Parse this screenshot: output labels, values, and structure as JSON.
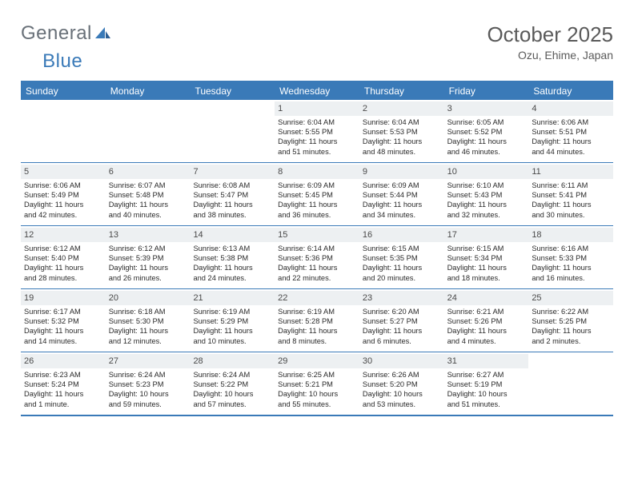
{
  "brand": {
    "part1": "General",
    "part2": "Blue"
  },
  "title": "October 2025",
  "location": "Ozu, Ehime, Japan",
  "colors": {
    "accent": "#3a7ab8",
    "dow_bg": "#3a7ab8",
    "dow_text": "#ffffff",
    "daynum_bg": "#edf0f2",
    "text": "#2a2a2a",
    "title_text": "#5a5a5a"
  },
  "dow": [
    "Sunday",
    "Monday",
    "Tuesday",
    "Wednesday",
    "Thursday",
    "Friday",
    "Saturday"
  ],
  "weeks": [
    [
      {
        "empty": true
      },
      {
        "empty": true
      },
      {
        "empty": true
      },
      {
        "n": "1",
        "sr": "Sunrise: 6:04 AM",
        "ss": "Sunset: 5:55 PM",
        "d1": "Daylight: 11 hours",
        "d2": "and 51 minutes."
      },
      {
        "n": "2",
        "sr": "Sunrise: 6:04 AM",
        "ss": "Sunset: 5:53 PM",
        "d1": "Daylight: 11 hours",
        "d2": "and 48 minutes."
      },
      {
        "n": "3",
        "sr": "Sunrise: 6:05 AM",
        "ss": "Sunset: 5:52 PM",
        "d1": "Daylight: 11 hours",
        "d2": "and 46 minutes."
      },
      {
        "n": "4",
        "sr": "Sunrise: 6:06 AM",
        "ss": "Sunset: 5:51 PM",
        "d1": "Daylight: 11 hours",
        "d2": "and 44 minutes."
      }
    ],
    [
      {
        "n": "5",
        "sr": "Sunrise: 6:06 AM",
        "ss": "Sunset: 5:49 PM",
        "d1": "Daylight: 11 hours",
        "d2": "and 42 minutes."
      },
      {
        "n": "6",
        "sr": "Sunrise: 6:07 AM",
        "ss": "Sunset: 5:48 PM",
        "d1": "Daylight: 11 hours",
        "d2": "and 40 minutes."
      },
      {
        "n": "7",
        "sr": "Sunrise: 6:08 AM",
        "ss": "Sunset: 5:47 PM",
        "d1": "Daylight: 11 hours",
        "d2": "and 38 minutes."
      },
      {
        "n": "8",
        "sr": "Sunrise: 6:09 AM",
        "ss": "Sunset: 5:45 PM",
        "d1": "Daylight: 11 hours",
        "d2": "and 36 minutes."
      },
      {
        "n": "9",
        "sr": "Sunrise: 6:09 AM",
        "ss": "Sunset: 5:44 PM",
        "d1": "Daylight: 11 hours",
        "d2": "and 34 minutes."
      },
      {
        "n": "10",
        "sr": "Sunrise: 6:10 AM",
        "ss": "Sunset: 5:43 PM",
        "d1": "Daylight: 11 hours",
        "d2": "and 32 minutes."
      },
      {
        "n": "11",
        "sr": "Sunrise: 6:11 AM",
        "ss": "Sunset: 5:41 PM",
        "d1": "Daylight: 11 hours",
        "d2": "and 30 minutes."
      }
    ],
    [
      {
        "n": "12",
        "sr": "Sunrise: 6:12 AM",
        "ss": "Sunset: 5:40 PM",
        "d1": "Daylight: 11 hours",
        "d2": "and 28 minutes."
      },
      {
        "n": "13",
        "sr": "Sunrise: 6:12 AM",
        "ss": "Sunset: 5:39 PM",
        "d1": "Daylight: 11 hours",
        "d2": "and 26 minutes."
      },
      {
        "n": "14",
        "sr": "Sunrise: 6:13 AM",
        "ss": "Sunset: 5:38 PM",
        "d1": "Daylight: 11 hours",
        "d2": "and 24 minutes."
      },
      {
        "n": "15",
        "sr": "Sunrise: 6:14 AM",
        "ss": "Sunset: 5:36 PM",
        "d1": "Daylight: 11 hours",
        "d2": "and 22 minutes."
      },
      {
        "n": "16",
        "sr": "Sunrise: 6:15 AM",
        "ss": "Sunset: 5:35 PM",
        "d1": "Daylight: 11 hours",
        "d2": "and 20 minutes."
      },
      {
        "n": "17",
        "sr": "Sunrise: 6:15 AM",
        "ss": "Sunset: 5:34 PM",
        "d1": "Daylight: 11 hours",
        "d2": "and 18 minutes."
      },
      {
        "n": "18",
        "sr": "Sunrise: 6:16 AM",
        "ss": "Sunset: 5:33 PM",
        "d1": "Daylight: 11 hours",
        "d2": "and 16 minutes."
      }
    ],
    [
      {
        "n": "19",
        "sr": "Sunrise: 6:17 AM",
        "ss": "Sunset: 5:32 PM",
        "d1": "Daylight: 11 hours",
        "d2": "and 14 minutes."
      },
      {
        "n": "20",
        "sr": "Sunrise: 6:18 AM",
        "ss": "Sunset: 5:30 PM",
        "d1": "Daylight: 11 hours",
        "d2": "and 12 minutes."
      },
      {
        "n": "21",
        "sr": "Sunrise: 6:19 AM",
        "ss": "Sunset: 5:29 PM",
        "d1": "Daylight: 11 hours",
        "d2": "and 10 minutes."
      },
      {
        "n": "22",
        "sr": "Sunrise: 6:19 AM",
        "ss": "Sunset: 5:28 PM",
        "d1": "Daylight: 11 hours",
        "d2": "and 8 minutes."
      },
      {
        "n": "23",
        "sr": "Sunrise: 6:20 AM",
        "ss": "Sunset: 5:27 PM",
        "d1": "Daylight: 11 hours",
        "d2": "and 6 minutes."
      },
      {
        "n": "24",
        "sr": "Sunrise: 6:21 AM",
        "ss": "Sunset: 5:26 PM",
        "d1": "Daylight: 11 hours",
        "d2": "and 4 minutes."
      },
      {
        "n": "25",
        "sr": "Sunrise: 6:22 AM",
        "ss": "Sunset: 5:25 PM",
        "d1": "Daylight: 11 hours",
        "d2": "and 2 minutes."
      }
    ],
    [
      {
        "n": "26",
        "sr": "Sunrise: 6:23 AM",
        "ss": "Sunset: 5:24 PM",
        "d1": "Daylight: 11 hours",
        "d2": "and 1 minute."
      },
      {
        "n": "27",
        "sr": "Sunrise: 6:24 AM",
        "ss": "Sunset: 5:23 PM",
        "d1": "Daylight: 10 hours",
        "d2": "and 59 minutes."
      },
      {
        "n": "28",
        "sr": "Sunrise: 6:24 AM",
        "ss": "Sunset: 5:22 PM",
        "d1": "Daylight: 10 hours",
        "d2": "and 57 minutes."
      },
      {
        "n": "29",
        "sr": "Sunrise: 6:25 AM",
        "ss": "Sunset: 5:21 PM",
        "d1": "Daylight: 10 hours",
        "d2": "and 55 minutes."
      },
      {
        "n": "30",
        "sr": "Sunrise: 6:26 AM",
        "ss": "Sunset: 5:20 PM",
        "d1": "Daylight: 10 hours",
        "d2": "and 53 minutes."
      },
      {
        "n": "31",
        "sr": "Sunrise: 6:27 AM",
        "ss": "Sunset: 5:19 PM",
        "d1": "Daylight: 10 hours",
        "d2": "and 51 minutes."
      },
      {
        "empty": true
      }
    ]
  ]
}
